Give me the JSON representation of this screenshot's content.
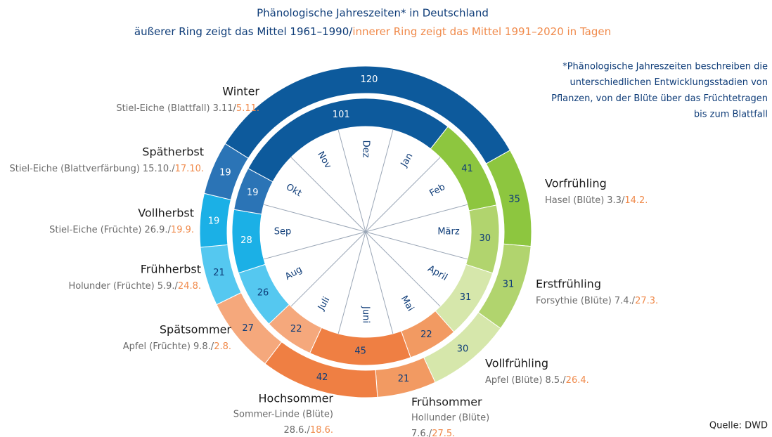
{
  "chart_data": {
    "type": "donut",
    "title": "Phänologische Jahreszeiten* in Deutschland",
    "subtitle": [
      "äußerer Ring zeigt das Mittel 1961–1990/",
      "innerer Ring zeigt das Mittel 1991–2020 in Tagen"
    ],
    "categories": [
      "Vorfrühling",
      "Erstfrühling",
      "Vollfrühling",
      "Frühsommer",
      "Hochsommer",
      "Spätsommer",
      "Frühherbst",
      "Vollherbst",
      "Spätherbst",
      "Winter"
    ],
    "colors": [
      "#8dc63f",
      "#b1d46e",
      "#d6e7ab",
      "#f29a62",
      "#ef7f43",
      "#f5a87c",
      "#55c8f0",
      "#1bb0e6",
      "#2b74b6",
      "#0d5a9c"
    ],
    "series": [
      {
        "values": [
          35,
          31,
          30,
          21,
          42,
          27,
          21,
          19,
          19,
          120
        ]
      },
      {
        "values": [
          41,
          30,
          31,
          22,
          45,
          22,
          26,
          28,
          19,
          101
        ]
      }
    ],
    "months": [
      "Dez",
      "Jan",
      "Feb",
      "März",
      "April",
      "Mai",
      "Juni",
      "Juli",
      "Aug",
      "Sep",
      "Okt",
      "Nov"
    ],
    "annotations": [
      {
        "plant": "Hasel (Blüte)",
        "old": "3.3/",
        "new": "14.2."
      },
      {
        "plant": "Forsythie (Blüte)",
        "old": "7.4./",
        "new": "27.3."
      },
      {
        "plant": "Apfel (Blüte)",
        "old": "8.5./",
        "new": "26.4."
      },
      {
        "plant": "Hollunder (Blüte)",
        "old": "7.6./",
        "new": "27.5."
      },
      {
        "plant": "Sommer-Linde (Blüte)",
        "old": "28.6./",
        "new": "18.6."
      },
      {
        "plant": "Apfel (Früchte)",
        "old": "9.8./",
        "new": "2.8."
      },
      {
        "plant": "Holunder (Früchte)",
        "old": "5.9./",
        "new": "24.8."
      },
      {
        "plant": "Stiel-Eiche (Früchte)",
        "old": "26.9./",
        "new": "19.9."
      },
      {
        "plant": "Stiel-Eiche (Blattverfärbung)",
        "old": "15.10./",
        "new": "17.10."
      },
      {
        "plant": "Stiel-Eiche (Blattfall)",
        "old": "3.11/",
        "new": "5.11."
      }
    ],
    "footnote": [
      "*Phänologische Jahreszeiten beschreiben die",
      "unterschiedlichen Entwicklungsstadien von",
      "Pflanzen, von der Blüte über das Früchtetragen",
      "bis zum Blattfall"
    ],
    "source": "Quelle: DWD"
  }
}
